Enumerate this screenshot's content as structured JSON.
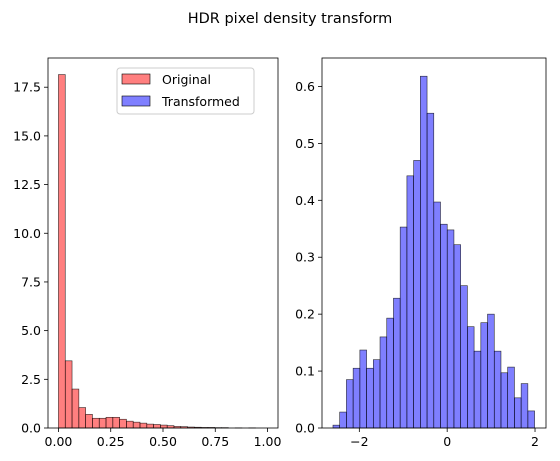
{
  "chart_data": {
    "title": "HDR pixel density transform",
    "charts": [
      {
        "type": "bar",
        "subtype": "histogram",
        "xlim": [
          -0.05,
          1.05
        ],
        "ylim": [
          0,
          19
        ],
        "xticks": [
          0.0,
          0.25,
          0.5,
          0.75,
          1.0
        ],
        "xtick_labels": [
          "0.00",
          "0.25",
          "0.50",
          "0.75",
          "1.00"
        ],
        "yticks": [
          0.0,
          2.5,
          5.0,
          7.5,
          10.0,
          12.5,
          15.0,
          17.5
        ],
        "ytick_labels": [
          "0.0",
          "2.5",
          "5.0",
          "7.5",
          "10.0",
          "12.5",
          "15.0",
          "17.5"
        ],
        "legend": {
          "placement": "upper-right"
        },
        "grid": false,
        "series": [
          {
            "name": "Original",
            "color": "#ff0000",
            "alpha": 0.5,
            "edge_color": "#000000",
            "bin_start": 0.0,
            "bin_width": 0.0325,
            "values": [
              18.15,
              3.45,
              2.0,
              1.05,
              0.7,
              0.5,
              0.5,
              0.55,
              0.55,
              0.45,
              0.35,
              0.3,
              0.25,
              0.2,
              0.18,
              0.15,
              0.12,
              0.08,
              0.07,
              0.05,
              0.04,
              0.03,
              0.03,
              0.02,
              0.02,
              0.0,
              0.01,
              0.0,
              0.01,
              0.0
            ]
          },
          {
            "name": "Transformed",
            "color": "#0000ff",
            "alpha": 0.5,
            "edge_color": "#000000",
            "legend_only": true
          }
        ]
      },
      {
        "type": "bar",
        "subtype": "histogram",
        "xlim": [
          -2.85,
          2.25
        ],
        "ylim": [
          0,
          0.65
        ],
        "xticks": [
          -2,
          0,
          2
        ],
        "xtick_labels": [
          "−2",
          "0",
          "2"
        ],
        "yticks": [
          0.0,
          0.1,
          0.2,
          0.3,
          0.4,
          0.5,
          0.6
        ],
        "ytick_labels": [
          "0.0",
          "0.1",
          "0.2",
          "0.3",
          "0.4",
          "0.5",
          "0.6"
        ],
        "grid": false,
        "series": [
          {
            "color": "#0000ff",
            "alpha": 0.5,
            "edge_color": "#000000",
            "bin_start": -2.6,
            "bin_width": 0.153,
            "values": [
              0.005,
              0.028,
              0.085,
              0.105,
              0.137,
              0.105,
              0.12,
              0.16,
              0.193,
              0.228,
              0.353,
              0.443,
              0.47,
              0.618,
              0.553,
              0.397,
              0.358,
              0.348,
              0.322,
              0.25,
              0.178,
              0.135,
              0.185,
              0.2,
              0.135,
              0.097,
              0.107,
              0.053,
              0.078,
              0.03
            ]
          }
        ]
      }
    ]
  }
}
